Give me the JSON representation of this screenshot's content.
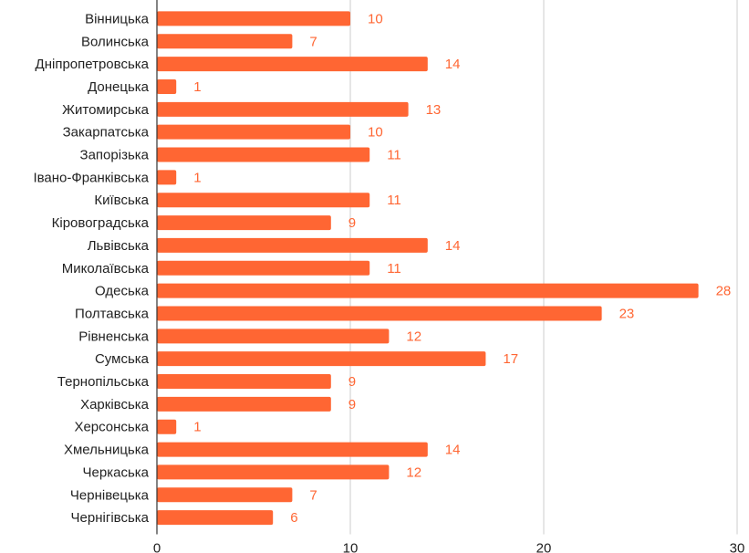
{
  "chart_data": {
    "type": "bar",
    "orientation": "horizontal",
    "title": "",
    "xlabel": "",
    "ylabel": "",
    "xlim": [
      0,
      30
    ],
    "xticks": [
      0,
      10,
      20,
      30
    ],
    "grid": true,
    "legend": "none",
    "bar_color": "#ff6633",
    "label_color": "#ff6633",
    "categories": [
      "Вінницька",
      "Волинська",
      "Дніпропетровська",
      "Донецька",
      "Житомирська",
      "Закарпатська",
      "Запорізька",
      "Івано-Франківська",
      "Київська",
      "Кіровоградська",
      "Львівська",
      "Миколаївська",
      "Одеська",
      "Полтавська",
      "Рівненська",
      "Сумська",
      "Тернопільська",
      "Харківська",
      "Херсонська",
      "Хмельницька",
      "Черкаська",
      "Чернівецька",
      "Чернігівська"
    ],
    "values": [
      10,
      7,
      14,
      1,
      13,
      10,
      11,
      1,
      11,
      9,
      14,
      11,
      28,
      23,
      12,
      17,
      9,
      9,
      1,
      14,
      12,
      7,
      6
    ]
  }
}
